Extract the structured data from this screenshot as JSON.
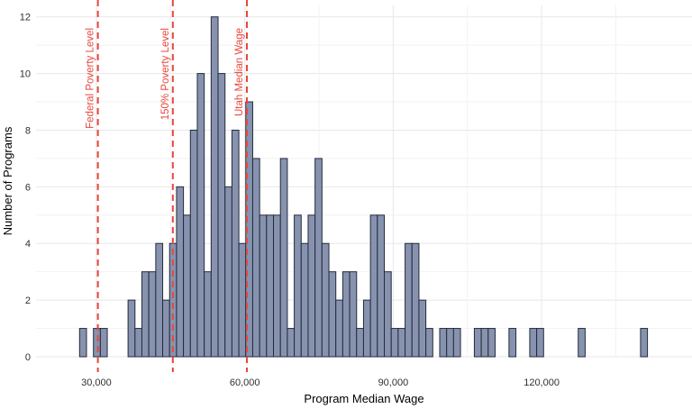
{
  "chart_data": {
    "type": "histogram",
    "title": "",
    "xlabel": "Program Median Wage",
    "ylabel": "Number of Programs",
    "x_domain": [
      17800,
      150400
    ],
    "y_domain": [
      0,
      12.4
    ],
    "grid": "on",
    "legend": "none",
    "bin_width": 1400,
    "x_ticks": [
      {
        "value": 30000,
        "label": "30,000"
      },
      {
        "value": 60000,
        "label": "60,000"
      },
      {
        "value": 90000,
        "label": "90,000"
      },
      {
        "value": 120000,
        "label": "120,000"
      }
    ],
    "x_minor_gridlines": [
      45000,
      75000,
      105000,
      135000
    ],
    "y_ticks": [
      {
        "value": 0,
        "label": "0"
      },
      {
        "value": 2,
        "label": "2"
      },
      {
        "value": 4,
        "label": "4"
      },
      {
        "value": 6,
        "label": "6"
      },
      {
        "value": 8,
        "label": "8"
      },
      {
        "value": 10,
        "label": "10"
      },
      {
        "value": 12,
        "label": "12"
      }
    ],
    "bins": [
      {
        "start": 26600,
        "count": 1
      },
      {
        "start": 29400,
        "count": 1
      },
      {
        "start": 30800,
        "count": 1
      },
      {
        "start": 36400,
        "count": 2
      },
      {
        "start": 37800,
        "count": 1
      },
      {
        "start": 39200,
        "count": 3
      },
      {
        "start": 40600,
        "count": 3
      },
      {
        "start": 42000,
        "count": 4
      },
      {
        "start": 43400,
        "count": 2
      },
      {
        "start": 44800,
        "count": 4
      },
      {
        "start": 46200,
        "count": 6
      },
      {
        "start": 47600,
        "count": 5
      },
      {
        "start": 49000,
        "count": 8
      },
      {
        "start": 50400,
        "count": 10
      },
      {
        "start": 51800,
        "count": 3
      },
      {
        "start": 53200,
        "count": 12
      },
      {
        "start": 54600,
        "count": 10
      },
      {
        "start": 56000,
        "count": 6
      },
      {
        "start": 57400,
        "count": 8
      },
      {
        "start": 58800,
        "count": 4
      },
      {
        "start": 60200,
        "count": 9
      },
      {
        "start": 61600,
        "count": 7
      },
      {
        "start": 63000,
        "count": 5
      },
      {
        "start": 64400,
        "count": 5
      },
      {
        "start": 65800,
        "count": 5
      },
      {
        "start": 67200,
        "count": 7
      },
      {
        "start": 68600,
        "count": 1
      },
      {
        "start": 70000,
        "count": 5
      },
      {
        "start": 71400,
        "count": 4
      },
      {
        "start": 72800,
        "count": 5
      },
      {
        "start": 74200,
        "count": 7
      },
      {
        "start": 75600,
        "count": 4
      },
      {
        "start": 77000,
        "count": 3
      },
      {
        "start": 78400,
        "count": 2
      },
      {
        "start": 79800,
        "count": 3
      },
      {
        "start": 81200,
        "count": 3
      },
      {
        "start": 82600,
        "count": 1
      },
      {
        "start": 84000,
        "count": 2
      },
      {
        "start": 85400,
        "count": 5
      },
      {
        "start": 86800,
        "count": 5
      },
      {
        "start": 88200,
        "count": 3
      },
      {
        "start": 89600,
        "count": 1
      },
      {
        "start": 91000,
        "count": 1
      },
      {
        "start": 92400,
        "count": 4
      },
      {
        "start": 93800,
        "count": 4
      },
      {
        "start": 95200,
        "count": 2
      },
      {
        "start": 96600,
        "count": 1
      },
      {
        "start": 99400,
        "count": 1
      },
      {
        "start": 100800,
        "count": 1
      },
      {
        "start": 102200,
        "count": 1
      },
      {
        "start": 106400,
        "count": 1
      },
      {
        "start": 107800,
        "count": 1
      },
      {
        "start": 109200,
        "count": 1
      },
      {
        "start": 113400,
        "count": 1
      },
      {
        "start": 117600,
        "count": 1
      },
      {
        "start": 119000,
        "count": 1
      },
      {
        "start": 127400,
        "count": 1
      },
      {
        "start": 140000,
        "count": 1
      }
    ],
    "reference_lines": [
      {
        "label": "Federal Poverty Level",
        "value": 30300
      },
      {
        "label": "150% Poverty Level",
        "value": 45450
      },
      {
        "label": "Utah Median Wage",
        "value": 60420
      }
    ],
    "colors": {
      "bar_fill": "#8793ae",
      "bar_border": "#242b3e",
      "reference": "#e8463c",
      "grid_major": "#e7e7e7",
      "grid_minor": "#f2f2f2",
      "tick_text": "#303030",
      "axis_title_text": "#1a1a1a"
    }
  }
}
